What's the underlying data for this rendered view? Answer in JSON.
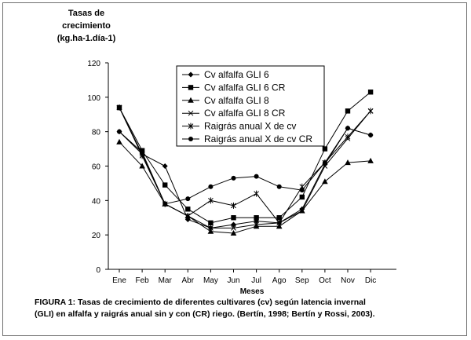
{
  "chart_data": {
    "type": "line",
    "ylabel_lines": [
      "Tasas de",
      "crecimiento",
      "(kg.ha-1.día-1)"
    ],
    "xlabel": "Meses",
    "categories": [
      "Ene",
      "Feb",
      "Mar",
      "Abr",
      "May",
      "Jun",
      "Jul",
      "Ago",
      "Sep",
      "Oct",
      "Nov",
      "Dic"
    ],
    "yticks": [
      "0",
      "20",
      "40",
      "60",
      "80",
      "100",
      "120"
    ],
    "ylim": [
      0,
      120
    ],
    "grid": false,
    "legend_position": "top-center",
    "series": [
      {
        "name": "Cv alfalfa GLI 6",
        "marker": "diamond",
        "values": [
          80,
          67,
          60,
          29,
          24,
          26,
          28,
          27,
          35,
          61,
          82,
          78
        ]
      },
      {
        "name": "Cv alfalfa GLI 6 CR",
        "marker": "square",
        "values": [
          94,
          69,
          49,
          35,
          27,
          30,
          30,
          30,
          42,
          70,
          92,
          103
        ]
      },
      {
        "name": "Cv alfalfa GLI 8",
        "marker": "triangle",
        "values": [
          74,
          60,
          38,
          31,
          22,
          21,
          25,
          25,
          34,
          51,
          62,
          63
        ]
      },
      {
        "name": "Cv alfalfa GLI 8 CR",
        "marker": "x",
        "values": [
          94,
          67,
          38,
          31,
          24,
          24,
          26,
          27,
          34,
          60,
          76,
          92
        ]
      },
      {
        "name": "Raigrás anual X de cv",
        "marker": "star",
        "values": [
          94,
          66,
          38,
          31,
          40,
          37,
          44,
          27,
          48,
          62,
          77,
          92
        ]
      },
      {
        "name": "Raigrás anual X de cv CR",
        "marker": "circle",
        "values": [
          80,
          68,
          38,
          41,
          48,
          53,
          54,
          48,
          46,
          62,
          82,
          78
        ]
      }
    ]
  },
  "caption": {
    "line1": "FIGURA 1: Tasas de crecimiento de diferentes cultivares (cv) según latencia invernal",
    "line2": "(GLI) en alfalfa y raigrás anual sin  y con (CR) riego. (Bertín, 1998; Bertín y Rossi, 2003)."
  }
}
